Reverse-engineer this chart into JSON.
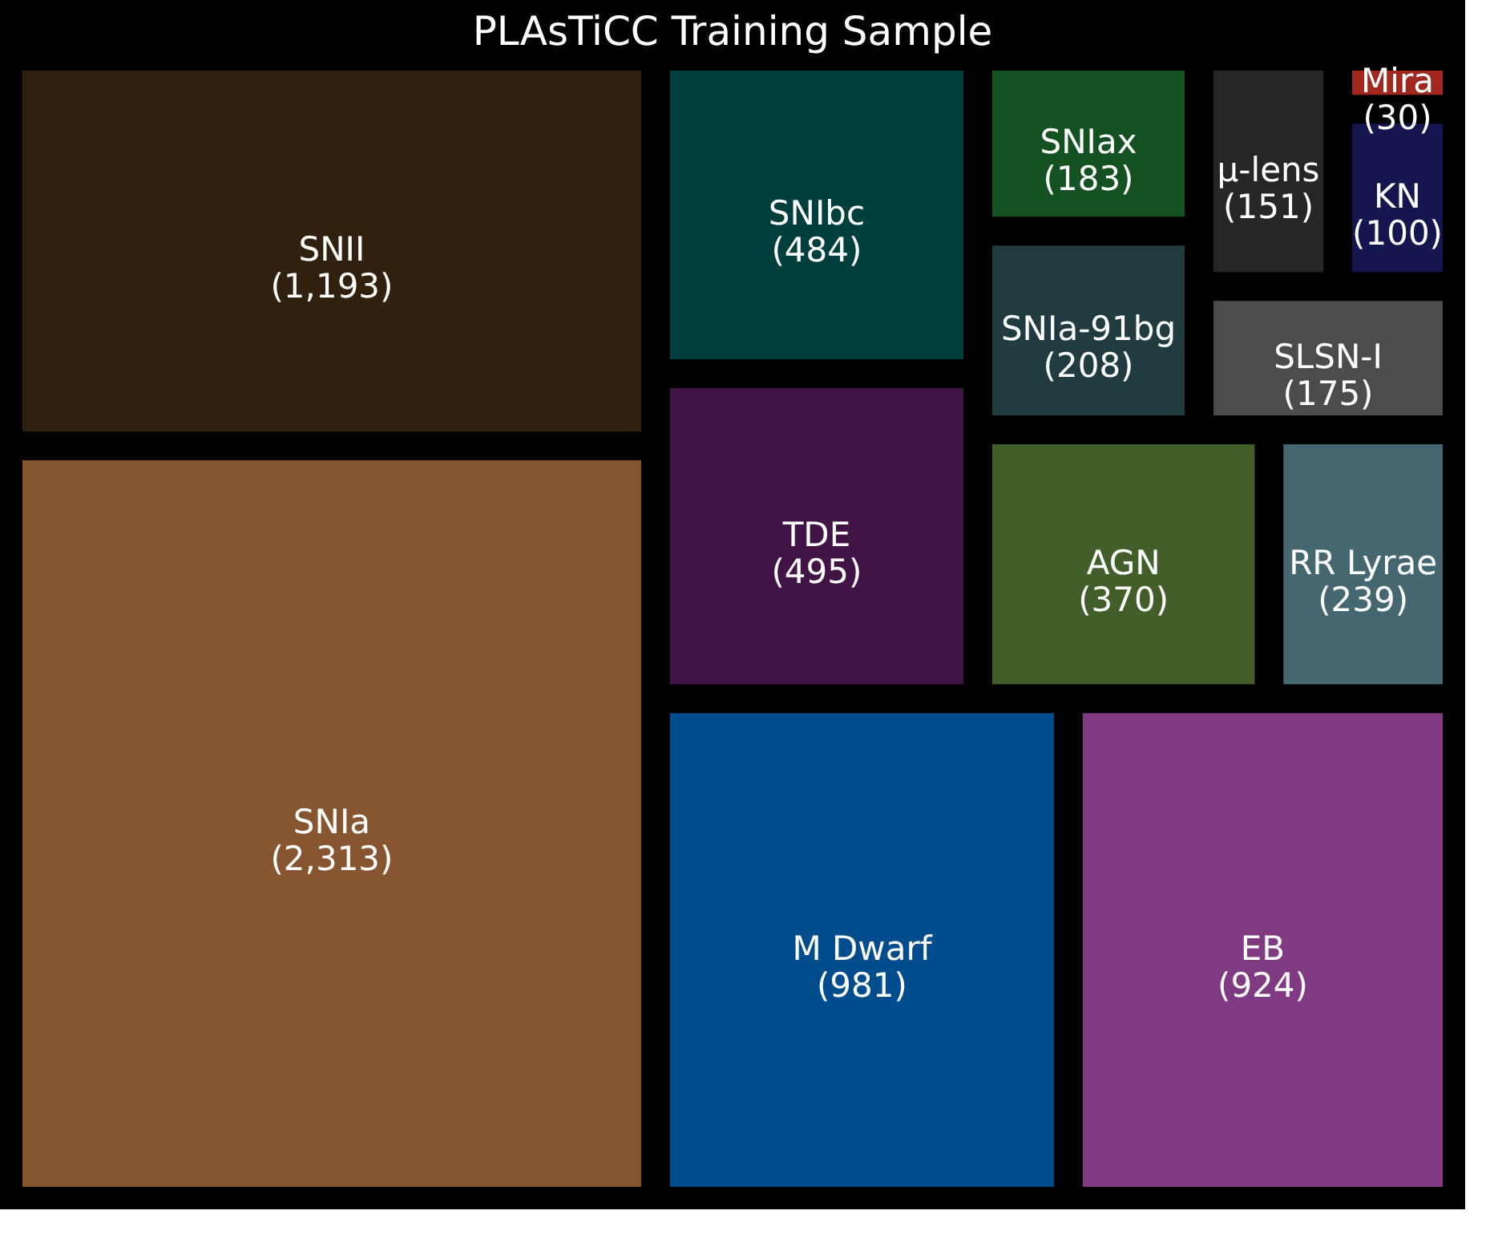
{
  "chart_data": {
    "type": "other",
    "title": "PLAsTiCC Training Sample",
    "categories": [
      "SNIa",
      "SNII",
      "M Dwarf",
      "EB",
      "TDE",
      "SNIbc",
      "AGN",
      "RR Lyrae",
      "SNIa-91bg",
      "SNIax",
      "SLSN-I",
      "μ-lens",
      "KN",
      "Mira"
    ],
    "values": [
      2313,
      1193,
      981,
      924,
      495,
      484,
      370,
      239,
      208,
      183,
      175,
      151,
      100,
      30
    ],
    "value_labels": [
      "(2,313)",
      "(1,193)",
      "(981)",
      "(924)",
      "(495)",
      "(484)",
      "(370)",
      "(239)",
      "(208)",
      "(183)",
      "(175)",
      "(151)",
      "(100)",
      "(30)"
    ],
    "colors": [
      "#87552f",
      "#30210f",
      "#004c8c",
      "#7f3a82",
      "#421445",
      "#003f3d",
      "#425e29",
      "#456870",
      "#213c40",
      "#145222",
      "#4c4c4c",
      "#262626",
      "#15154f",
      "#a0281e"
    ]
  }
}
